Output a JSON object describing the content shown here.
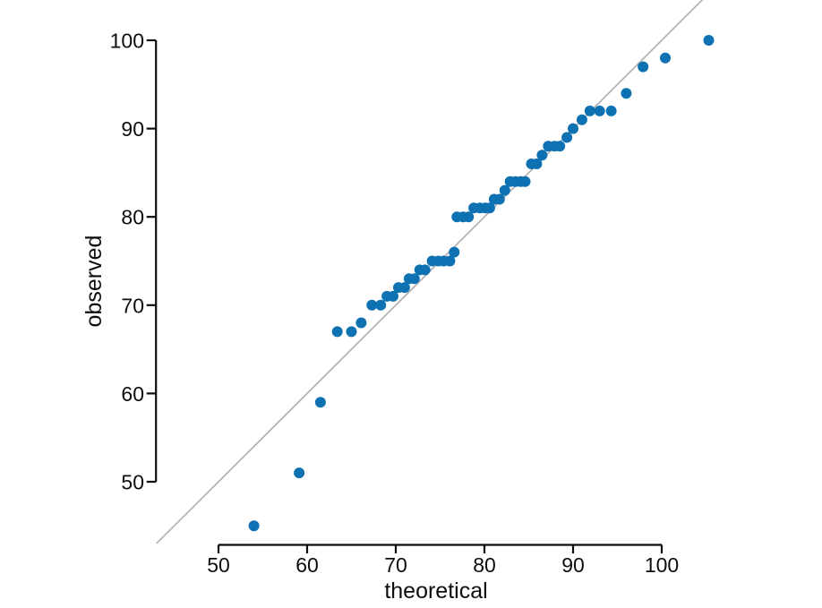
{
  "chart_data": {
    "type": "scatter",
    "title": "",
    "xlabel": "theoretical",
    "ylabel": "observed",
    "x_ticks": [
      50,
      60,
      70,
      80,
      90,
      100
    ],
    "y_ticks": [
      50,
      60,
      70,
      80,
      90,
      100
    ],
    "x_axis_range": [
      50,
      100
    ],
    "y_axis_range": [
      50,
      100
    ],
    "grid": false,
    "legend": false,
    "point_color": "#0e71b2",
    "axis_color": "#0d0d0d",
    "background_color": "#ffffff",
    "reference_line": {
      "kind": "identity (y = x)",
      "from": 43.0,
      "to": 104.7,
      "color": "#b5b5b5"
    },
    "points": [
      [
        54.0,
        45
      ],
      [
        59.1,
        51
      ],
      [
        61.5,
        59
      ],
      [
        63.4,
        67
      ],
      [
        65.0,
        67
      ],
      [
        66.1,
        68
      ],
      [
        67.3,
        70
      ],
      [
        68.3,
        70
      ],
      [
        69.0,
        71
      ],
      [
        69.7,
        71
      ],
      [
        70.3,
        72
      ],
      [
        71.0,
        72
      ],
      [
        71.5,
        73
      ],
      [
        72.1,
        73
      ],
      [
        72.7,
        74
      ],
      [
        73.3,
        74
      ],
      [
        74.1,
        75
      ],
      [
        74.8,
        75
      ],
      [
        75.4,
        75
      ],
      [
        76.1,
        75
      ],
      [
        76.6,
        76
      ],
      [
        76.9,
        80
      ],
      [
        77.6,
        80
      ],
      [
        78.2,
        80
      ],
      [
        78.8,
        81
      ],
      [
        79.5,
        81
      ],
      [
        80.1,
        81
      ],
      [
        80.6,
        81
      ],
      [
        81.1,
        82
      ],
      [
        81.7,
        82
      ],
      [
        82.3,
        83
      ],
      [
        82.9,
        84
      ],
      [
        83.5,
        84
      ],
      [
        84.1,
        84
      ],
      [
        84.6,
        84
      ],
      [
        85.3,
        86
      ],
      [
        85.9,
        86
      ],
      [
        86.5,
        87
      ],
      [
        87.2,
        88
      ],
      [
        87.9,
        88
      ],
      [
        88.5,
        88
      ],
      [
        89.3,
        89
      ],
      [
        90.0,
        90
      ],
      [
        91.0,
        91
      ],
      [
        91.9,
        92
      ],
      [
        93.0,
        92
      ],
      [
        94.3,
        92
      ],
      [
        96.0,
        94
      ],
      [
        97.9,
        97
      ],
      [
        100.4,
        98
      ],
      [
        105.3,
        100
      ]
    ]
  }
}
